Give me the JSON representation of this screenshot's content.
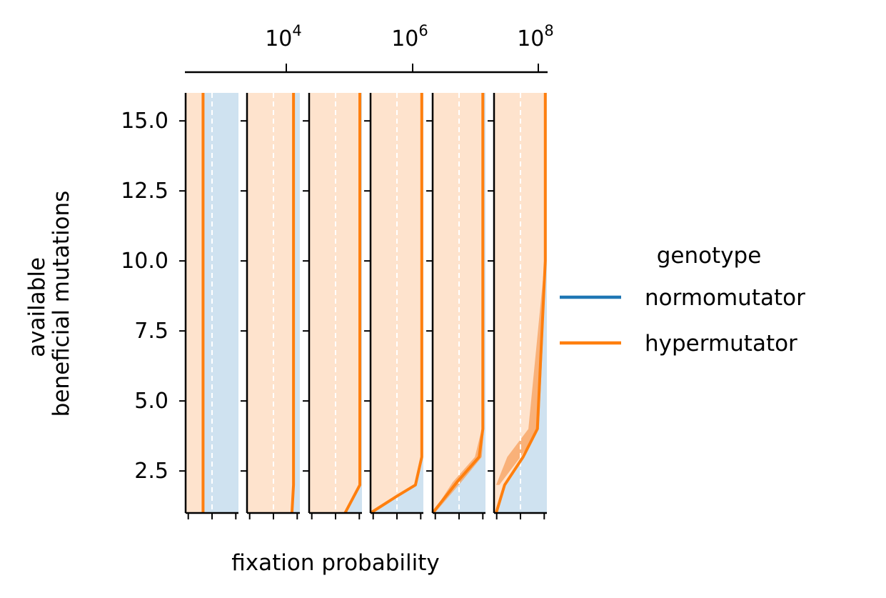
{
  "colors": {
    "normomutator": "#1f77b4",
    "hypermutator": "#ff7f0e",
    "normomutator_fill": "#cfe2f0",
    "hypermutator_fill": "#fee3cd",
    "hypermutator_band": "#f7a05c",
    "grid": "#ffffff",
    "axis": "#000000"
  },
  "chart_data": {
    "type": "line",
    "xlabel": "fixation probability",
    "ylabel_lines": [
      "available",
      "beneficial mutations"
    ],
    "ylim": [
      1,
      16
    ],
    "yticks": [
      2.5,
      5.0,
      7.5,
      10.0,
      12.5,
      15.0
    ],
    "ytick_labels": [
      "2.5",
      "5.0",
      "7.5",
      "10.0",
      "12.5",
      "15.0"
    ],
    "secondary_x": {
      "scale": "log",
      "ticks": [
        10000,
        1000000,
        100000000
      ],
      "tick_labels": [
        {
          "base": "10",
          "exp": "4"
        },
        {
          "base": "10",
          "exp": "6"
        },
        {
          "base": "10",
          "exp": "8"
        }
      ]
    },
    "legend": {
      "title": "genotype",
      "placement": "right",
      "entries": [
        {
          "label": "normomutator",
          "series": "normomutator"
        },
        {
          "label": "hypermutator",
          "series": "hypermutator"
        }
      ]
    },
    "panels": [
      {
        "hypermutator": {
          "y": [
            1,
            16
          ],
          "x": [
            0.33,
            0.33
          ]
        },
        "normomutator_region_from": 0.55
      },
      {
        "hypermutator": {
          "y": [
            1,
            2,
            16
          ],
          "x": [
            0.85,
            0.88,
            0.88
          ]
        },
        "normomutator_region_from": 1.0
      },
      {
        "hypermutator": {
          "y": [
            1,
            2,
            16
          ],
          "x": [
            0.68,
            0.96,
            0.96
          ]
        },
        "normomutator_region_from": 1.0
      },
      {
        "hypermutator": {
          "y": [
            1,
            1.6,
            2,
            3,
            16
          ],
          "x": [
            0.0,
            0.5,
            0.85,
            0.97,
            0.97
          ]
        },
        "normomutator_region_from": 1.0
      },
      {
        "hypermutator": {
          "y": [
            1,
            2.1,
            3,
            4,
            16
          ],
          "x": [
            0.0,
            0.46,
            0.88,
            0.95,
            0.95
          ]
        },
        "band": {
          "y": [
            1,
            2.1,
            3,
            4
          ],
          "x_lo": [
            0.0,
            0.38,
            0.8,
            0.93
          ],
          "x_hi": [
            0.04,
            0.54,
            0.93,
            0.97
          ]
        },
        "normomutator_region_from": 1.0
      },
      {
        "hypermutator": {
          "y": [
            1,
            2,
            3,
            4,
            10,
            16
          ],
          "x": [
            0.04,
            0.2,
            0.55,
            0.82,
            0.97,
            0.97
          ]
        },
        "band": {
          "y": [
            2,
            3,
            4,
            10
          ],
          "x_lo": [
            0.04,
            0.25,
            0.65,
            0.96
          ],
          "x_hi": [
            0.1,
            0.5,
            0.85,
            0.99
          ]
        },
        "normomutator_region_from": 1.0
      }
    ]
  }
}
